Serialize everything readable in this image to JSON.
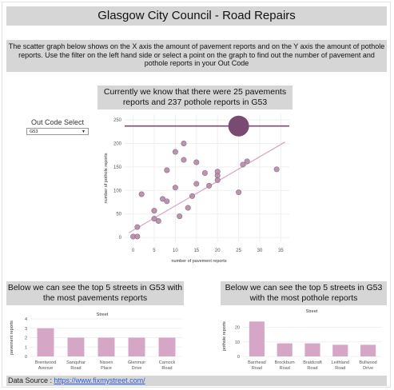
{
  "title": "Glasgow City Council - Road Repairs",
  "intro": "The scatter graph below shows on the X axis the amount of pavement reports and on the Y axis the amount of pothole reports. Use the filter on the left hand side or select a point on the graph to find out the number of pavement and pothole reports in your Out Code",
  "status": "Currently we know that there were 25 pavements reports and 237 pothole reports in G53",
  "filter": {
    "label": "Out Code Select",
    "selected": "G53",
    "icon": "chevron-down-icon"
  },
  "colors": {
    "banner": "#d6d6d6",
    "point": "#b48aa6",
    "highlight": "#7a4b72",
    "trend": "#d6a8c4",
    "bar": "#d6a6c6"
  },
  "chart_data": [
    {
      "type": "scatter",
      "xlabel": "number of pavement reports",
      "ylabel": "number of pothole reports",
      "xlim": [
        -2,
        37
      ],
      "ylim": [
        -10,
        262
      ],
      "xticks": [
        0,
        5,
        10,
        15,
        20,
        25,
        30,
        35
      ],
      "yticks": [
        0,
        50,
        100,
        150,
        200,
        250
      ],
      "grid": true,
      "points": [
        {
          "x": 0,
          "y": 2
        },
        {
          "x": 1,
          "y": 2
        },
        {
          "x": 1,
          "y": 22
        },
        {
          "x": 2,
          "y": 92
        },
        {
          "x": 5,
          "y": 40
        },
        {
          "x": 5,
          "y": 57
        },
        {
          "x": 6,
          "y": 35
        },
        {
          "x": 7,
          "y": 82
        },
        {
          "x": 8,
          "y": 143
        },
        {
          "x": 8,
          "y": 77
        },
        {
          "x": 10,
          "y": 182
        },
        {
          "x": 10,
          "y": 106
        },
        {
          "x": 11,
          "y": 45
        },
        {
          "x": 12,
          "y": 200
        },
        {
          "x": 12,
          "y": 165
        },
        {
          "x": 13,
          "y": 63
        },
        {
          "x": 14,
          "y": 88
        },
        {
          "x": 15,
          "y": 114
        },
        {
          "x": 15,
          "y": 160
        },
        {
          "x": 17,
          "y": 137
        },
        {
          "x": 18,
          "y": 110
        },
        {
          "x": 20,
          "y": 132
        },
        {
          "x": 20,
          "y": 140
        },
        {
          "x": 20,
          "y": 122
        },
        {
          "x": 25,
          "y": 96
        },
        {
          "x": 26,
          "y": 155
        },
        {
          "x": 27,
          "y": 162
        },
        {
          "x": 34,
          "y": 145
        }
      ],
      "highlight": {
        "x": 25,
        "y": 237,
        "label": "G53"
      },
      "reference_line_y": 237,
      "trend": {
        "x0": -1,
        "y0": 10,
        "x1": 36,
        "y1": 203
      }
    },
    {
      "type": "bar",
      "title": "Street",
      "ylabel": "pavement reports",
      "categories": [
        "Brentwood Avenue",
        "Sanquhar Road",
        "Nissen Place",
        "Glenmuir Drive",
        "Carnock Road"
      ],
      "values": [
        3,
        2,
        2,
        2,
        2
      ],
      "ylim": [
        0,
        4
      ],
      "yticks": [
        0,
        1,
        2,
        3,
        4
      ]
    },
    {
      "type": "bar",
      "title": "Street",
      "ylabel": "pothole reports",
      "categories": [
        "Barrhead Road",
        "Brockburn Road",
        "Braidcraft Road",
        "Leithland Road",
        "Bullwood Drive"
      ],
      "values": [
        24,
        9,
        9,
        8,
        8
      ],
      "ylim": [
        0,
        28
      ],
      "yticks": [
        0,
        10,
        20
      ]
    }
  ],
  "pavement_banner": "Below we can see the top 5 streets in G53 with the most pavements reports",
  "pothole_banner": "Below we can see the top 5 streets in G53 with the most pothole reports",
  "footer": {
    "label": "Data Source :",
    "link_text": "https://www.fixmystreet.com/"
  }
}
